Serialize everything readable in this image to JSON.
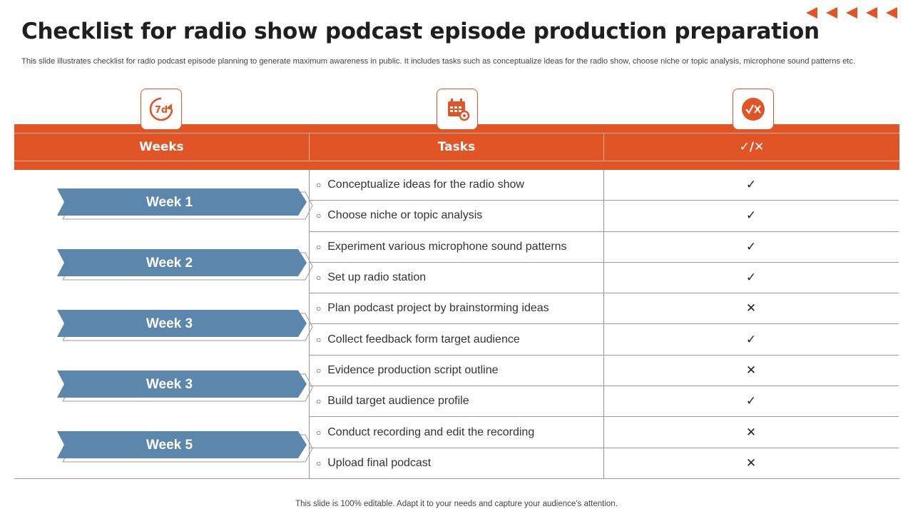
{
  "slide": {
    "title": "Checklist for radio show podcast episode production preparation",
    "subtitle": "This slide illustrates checklist for radio podcast episode planning to generate maximum awareness in public. It includes tasks such as conceptualize ideas for the radio show, choose niche or topic analysis, microphone sound patterns etc.",
    "footer": "This slide is 100% editable. Adapt it to your needs and capture your audience’s attention."
  },
  "colors": {
    "accent": "#e05426",
    "week_arrow": "#5b87ad"
  },
  "icons": {
    "weeks": "7d-refresh-icon",
    "tasks": "calendar-gear-icon",
    "status": "check-cross-icon"
  },
  "headers": {
    "weeks": "Weeks",
    "tasks": "Tasks",
    "status": "✓/✕"
  },
  "weeks": [
    "Week 1",
    "Week 2",
    "Week 3",
    "Week 3",
    "Week 5"
  ],
  "tasks": [
    {
      "text": "Conceptualize ideas for the radio show",
      "status": "✓"
    },
    {
      "text": "Choose niche or topic analysis",
      "status": "✓"
    },
    {
      "text": "Experiment various microphone sound patterns",
      "status": "✓"
    },
    {
      "text": "Set up radio station",
      "status": "✓"
    },
    {
      "text": "Plan podcast project by brainstorming ideas",
      "status": "✕"
    },
    {
      "text": "Collect feedback form target audience",
      "status": "✓"
    },
    {
      "text": "Evidence production script outline",
      "status": "✕"
    },
    {
      "text": "Build target audience profile",
      "status": "✓"
    },
    {
      "text": "Conduct recording and edit the recording",
      "status": "✕"
    },
    {
      "text": "Upload final podcast",
      "status": "✕"
    }
  ]
}
